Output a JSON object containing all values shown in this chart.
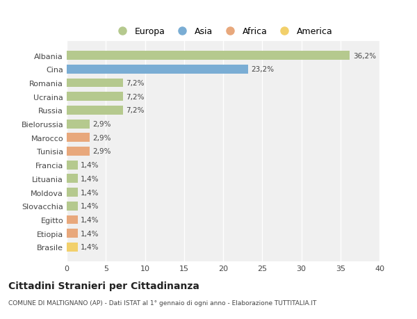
{
  "countries": [
    "Albania",
    "Cina",
    "Romania",
    "Ucraina",
    "Russia",
    "Bielorussia",
    "Marocco",
    "Tunisia",
    "Francia",
    "Lituania",
    "Moldova",
    "Slovacchia",
    "Egitto",
    "Etiopia",
    "Brasile"
  ],
  "values": [
    36.2,
    23.2,
    7.2,
    7.2,
    7.2,
    2.9,
    2.9,
    2.9,
    1.4,
    1.4,
    1.4,
    1.4,
    1.4,
    1.4,
    1.4
  ],
  "labels": [
    "36,2%",
    "23,2%",
    "7,2%",
    "7,2%",
    "7,2%",
    "2,9%",
    "2,9%",
    "2,9%",
    "1,4%",
    "1,4%",
    "1,4%",
    "1,4%",
    "1,4%",
    "1,4%",
    "1,4%"
  ],
  "continents": [
    "Europa",
    "Asia",
    "Europa",
    "Europa",
    "Europa",
    "Europa",
    "Africa",
    "Africa",
    "Europa",
    "Europa",
    "Europa",
    "Europa",
    "Africa",
    "Africa",
    "America"
  ],
  "colors": {
    "Europa": "#b5c98e",
    "Asia": "#7aadd4",
    "Africa": "#e8a87c",
    "America": "#f2d06b"
  },
  "legend_order": [
    "Europa",
    "Asia",
    "Africa",
    "America"
  ],
  "xlim": [
    0,
    40
  ],
  "xticks": [
    0,
    5,
    10,
    15,
    20,
    25,
    30,
    35,
    40
  ],
  "title": "Cittadini Stranieri per Cittadinanza",
  "subtitle": "COMUNE DI MALTIGNANO (AP) - Dati ISTAT al 1° gennaio di ogni anno - Elaborazione TUTTITALIA.IT",
  "bg_color": "#ffffff",
  "plot_bg_color": "#f0f0f0",
  "bar_height": 0.65,
  "grid_color": "#ffffff",
  "text_color": "#444444",
  "label_fontsize": 7.5,
  "ytick_fontsize": 8,
  "xtick_fontsize": 8
}
